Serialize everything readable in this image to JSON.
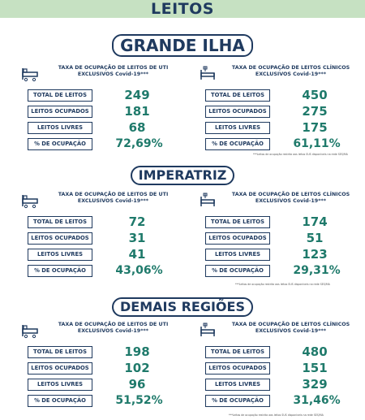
{
  "header": {
    "title": "LEITOS"
  },
  "regions": [
    {
      "title": "GRANDE ILHA",
      "uti": {
        "title_line1": "TAXA DE OCUPAÇÃO DE LEITOS DE UTI",
        "title_line2": "EXCLUSIVOS Covid-19***",
        "rows": [
          {
            "label": "TOTAL DE LEITOS",
            "value": "249"
          },
          {
            "label": "LEITOS OCUPADOS",
            "value": "181"
          },
          {
            "label": "LEITOS LIVRES",
            "value": "68"
          },
          {
            "label": "% DE OCUPAÇÃO",
            "value": "72,69%"
          }
        ]
      },
      "clinicos": {
        "title_line1": "TAXA DE OCUPAÇÃO DE LEITOS CLÍNICOS",
        "title_line2": "EXCLUSIVOS Covid-19***",
        "rows": [
          {
            "label": "TOTAL DE LEITOS",
            "value": "450"
          },
          {
            "label": "LEITOS OCUPADOS",
            "value": "275"
          },
          {
            "label": "LEITOS LIVRES",
            "value": "175"
          },
          {
            "label": "% DE OCUPAÇÃO",
            "value": "61,11%"
          }
        ]
      },
      "footnote": "***Leitos de ocupação restrita aos leitos SUS disponíveis na rede SES/MA"
    },
    {
      "title": "IMPERATRIZ",
      "uti": {
        "title_line1": "TAXA DE OCUPAÇÃO DE LEITOS DE UTI",
        "title_line2": "EXCLUSIVOS Covid-19***",
        "rows": [
          {
            "label": "TOTAL DE LEITOS",
            "value": "72"
          },
          {
            "label": "LEITOS OCUPADOS",
            "value": "31"
          },
          {
            "label": "LEITOS LIVRES",
            "value": "41"
          },
          {
            "label": "% DE OCUPAÇÃO",
            "value": "43,06%"
          }
        ]
      },
      "clinicos": {
        "title_line1": "TAXA DE OCUPAÇÃO DE LEITOS CLÍNICOS",
        "title_line2": "EXCLUSIVOS Covid-19***",
        "rows": [
          {
            "label": "TOTAL DE LEITOS",
            "value": "174"
          },
          {
            "label": "LEITOS OCUPADOS",
            "value": "51"
          },
          {
            "label": "LEITOS LIVRES",
            "value": "123"
          },
          {
            "label": "% DE OCUPAÇÃO",
            "value": "29,31%"
          }
        ]
      },
      "footnote": "***Leitos de ocupação restrita aos leitos SUS disponíveis na rede SES/MA"
    },
    {
      "title": "DEMAIS REGIÕES",
      "uti": {
        "title_line1": "TAXA DE OCUPAÇÃO DE LEITOS DE UTI",
        "title_line2": "EXCLUSIVOS Covid-19***",
        "rows": [
          {
            "label": "TOTAL DE LEITOS",
            "value": "198"
          },
          {
            "label": "LEITOS OCUPADOS",
            "value": "102"
          },
          {
            "label": "LEITOS LIVRES",
            "value": "96"
          },
          {
            "label": "% DE OCUPAÇÃO",
            "value": "51,52%"
          }
        ]
      },
      "clinicos": {
        "title_line1": "TAXA DE OCUPAÇÃO DE LEITOS CLÍNICOS",
        "title_line2": "EXCLUSIVOS Covid-19***",
        "rows": [
          {
            "label": "TOTAL DE LEITOS",
            "value": "480"
          },
          {
            "label": "LEITOS OCUPADOS",
            "value": "151"
          },
          {
            "label": "LEITOS LIVRES",
            "value": "329"
          },
          {
            "label": "% DE OCUPAÇÃO",
            "value": "31,46%"
          }
        ]
      },
      "footnote": "***Leitos de ocupação restrita aos leitos SUS disponíveis na rede SES/MA"
    }
  ],
  "icons": {
    "uti": "hospital-bed-icon",
    "clinicos": "clinical-bed-icon"
  },
  "colors": {
    "navy": "#1f3a5f",
    "teal": "#1f7a6b",
    "green_band": "#c6e1c2"
  }
}
